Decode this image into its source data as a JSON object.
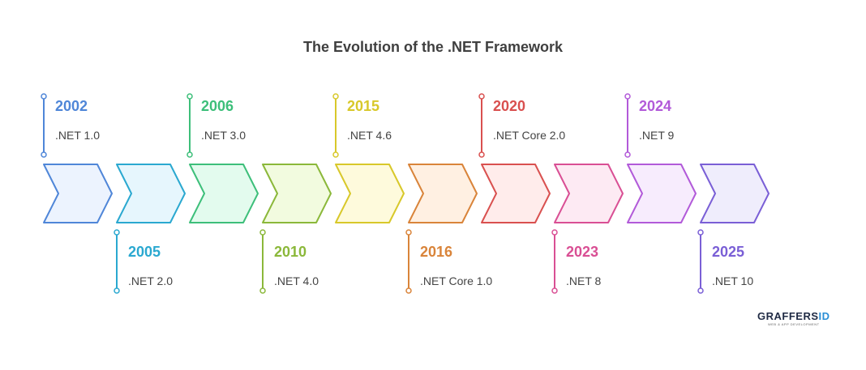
{
  "title": "The Evolution of the .NET Framework",
  "milestones": [
    {
      "year": "2002",
      "label": ".NET 1.0",
      "position": "top",
      "color": "#4f86d8",
      "fill": "#ecf3fe"
    },
    {
      "year": "2005",
      "label": ".NET 2.0",
      "position": "bottom",
      "color": "#2aa8d0",
      "fill": "#e6f6fd"
    },
    {
      "year": "2006",
      "label": ".NET 3.0",
      "position": "top",
      "color": "#3dbf7a",
      "fill": "#e3fbee"
    },
    {
      "year": "2010",
      "label": ".NET 4.0",
      "position": "bottom",
      "color": "#8bb83a",
      "fill": "#f2fbdf"
    },
    {
      "year": "2015",
      "label": ".NET 4.6",
      "position": "top",
      "color": "#d8c82a",
      "fill": "#fefadc"
    },
    {
      "year": "2016",
      "label": ".NET Core 1.0",
      "position": "bottom",
      "color": "#d9843a",
      "fill": "#fff0e2"
    },
    {
      "year": "2020",
      "label": ".NET Core 2.0",
      "position": "top",
      "color": "#d9504f",
      "fill": "#ffeceb"
    },
    {
      "year": "2023",
      "label": ".NET 8",
      "position": "bottom",
      "color": "#d94f94",
      "fill": "#fdeaf3"
    },
    {
      "year": "2024",
      "label": ".NET 9",
      "position": "top",
      "color": "#b25ad9",
      "fill": "#f7ecfd"
    },
    {
      "year": "2025",
      "label": ".NET 10",
      "position": "bottom",
      "color": "#7a5fd6",
      "fill": "#efedfc"
    }
  ],
  "logo": {
    "text": "GRAFFERSID",
    "tagline": "WEB & APP DEVELOPMENT"
  }
}
